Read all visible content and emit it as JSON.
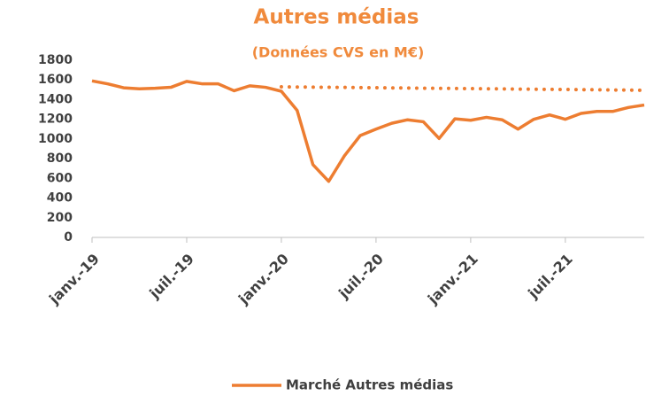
{
  "chart_data": {
    "type": "line",
    "title": "Autres médias",
    "subtitle": "(Données CVS en M€)",
    "categories": [
      "janv.-19",
      null,
      null,
      null,
      null,
      null,
      "juil.-19",
      null,
      null,
      null,
      null,
      null,
      "janv.-20",
      null,
      null,
      null,
      null,
      null,
      "juil.-20",
      null,
      null,
      null,
      null,
      null,
      "janv.-21",
      null,
      null,
      null,
      null,
      null,
      "juil.-21",
      null,
      null,
      null,
      null,
      null
    ],
    "series": [
      {
        "name": "Marché Autres médias",
        "color": "#ED7D31",
        "style": "solid",
        "values": [
          1590,
          1560,
          1520,
          1510,
          1515,
          1525,
          1585,
          1560,
          1560,
          1490,
          1540,
          1525,
          1485,
          1290,
          740,
          570,
          830,
          1035,
          1100,
          1160,
          1195,
          1175,
          1005,
          1205,
          1190,
          1220,
          1195,
          1100,
          1200,
          1245,
          1200,
          1260,
          1280,
          1280,
          1320,
          1345
        ]
      },
      {
        "color": "#ED7D31",
        "style": "dotted",
        "values": [
          null,
          null,
          null,
          null,
          null,
          null,
          null,
          null,
          null,
          null,
          null,
          null,
          1530,
          1528,
          1527,
          1525,
          1524,
          1522,
          1521,
          1519,
          1518,
          1516,
          1515,
          1513,
          1512,
          1510,
          1509,
          1507,
          1506,
          1504,
          1503,
          1501,
          1500,
          1498,
          1497,
          1495
        ]
      }
    ],
    "ylim": [
      0,
      1800
    ],
    "yticks": [
      0,
      200,
      400,
      600,
      800,
      1000,
      1200,
      1400,
      1600,
      1800
    ],
    "legend": "bottom"
  }
}
